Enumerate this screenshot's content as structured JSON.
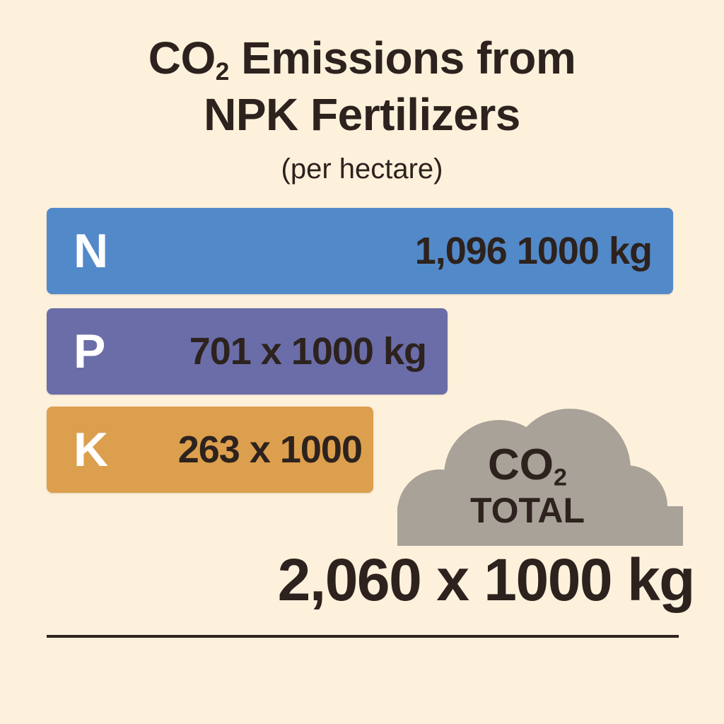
{
  "title": {
    "line1_prefix": "CO",
    "line1_subscript": "2",
    "line1_suffix": " Emissions from",
    "line2": "NPK Fertilizers"
  },
  "subtitle": "(per hectare)",
  "colors": {
    "background": "#fdf1dc",
    "n_bar": "#5289c9",
    "p_bar": "#6a6da8",
    "k_bar": "#dc9f4d",
    "cloud": "#a8a298",
    "text": "#2d221d"
  },
  "chart_data": {
    "type": "bar",
    "orientation": "horizontal",
    "categories": [
      "N",
      "P",
      "K"
    ],
    "values": [
      1096,
      701,
      263
    ],
    "unit": "x1000 kg",
    "value_labels": [
      "1,096 1000 kg",
      "701 x 1000 kg",
      "263 x 1000"
    ],
    "total": {
      "label_prefix": "CO",
      "label_subscript": "2",
      "label_line2": "TOTAL",
      "value": 2060,
      "value_label": "2,060 x 1000 kg"
    }
  }
}
